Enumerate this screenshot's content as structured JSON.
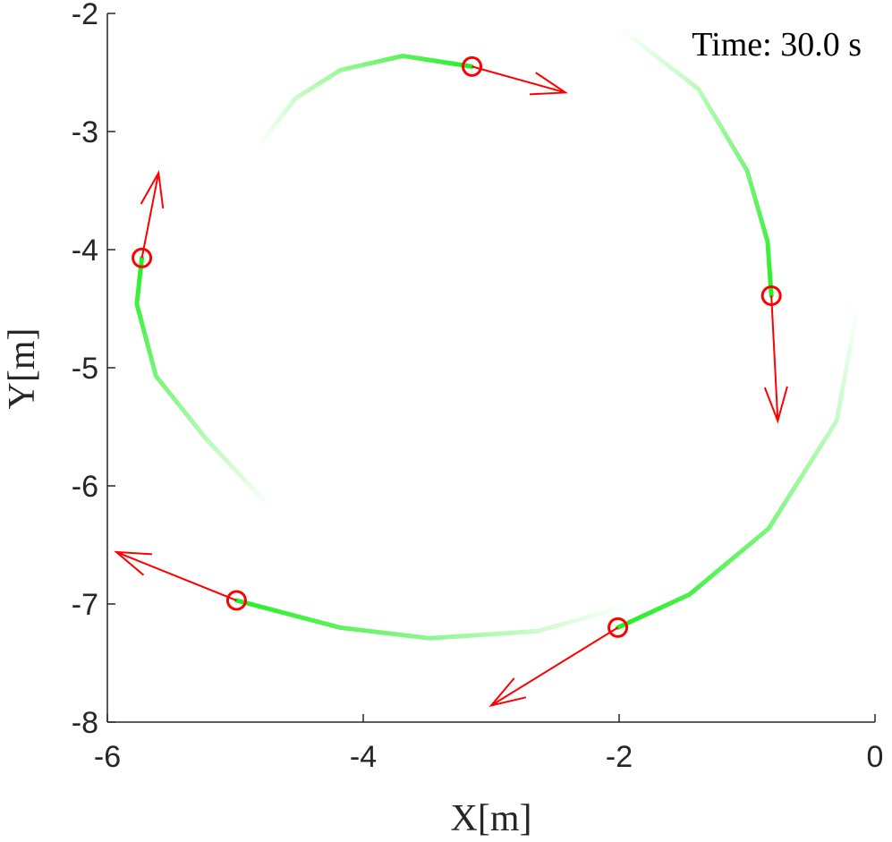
{
  "chart_data": {
    "type": "trajectory",
    "annotation": "Time: 30.0 s",
    "xlabel": "X[m]",
    "ylabel": "Y[m]",
    "xlim": [
      -6,
      0
    ],
    "ylim": [
      -8,
      -2
    ],
    "xticks": [
      -6,
      -4,
      -2,
      0
    ],
    "yticks": [
      -8,
      -7,
      -6,
      -5,
      -4,
      -3,
      -2
    ],
    "trail_color": "#22ee22",
    "marker_color": "#ff0000",
    "series": [
      {
        "x": [
          -4.83,
          -4.53,
          -4.18,
          -3.69,
          -3.15
        ],
        "values": [
          -3.14,
          -2.72,
          -2.48,
          -2.36,
          -2.45
        ],
        "arrow": {
          "x": -2.42,
          "y": -2.67
        }
      },
      {
        "x": [
          -4.71,
          -5.23,
          -5.62,
          -5.77,
          -5.73
        ],
        "values": [
          -6.2,
          -5.6,
          -5.07,
          -4.46,
          -4.07
        ],
        "arrow": {
          "x": -5.6,
          "y": -3.35
        }
      },
      {
        "x": [
          -2.01,
          -1.38,
          -1.0,
          -0.84,
          -0.81
        ],
        "values": [
          -2.11,
          -2.64,
          -3.33,
          -3.93,
          -4.39
        ],
        "arrow": {
          "x": -0.76,
          "y": -5.45
        }
      },
      {
        "x": [
          -1.94,
          -2.64,
          -3.48,
          -4.18,
          -4.99
        ],
        "values": [
          -7.02,
          -7.23,
          -7.29,
          -7.2,
          -6.97
        ],
        "arrow": {
          "x": -5.93,
          "y": -6.56
        }
      },
      {
        "x": [
          -0.13,
          -0.3,
          -0.83,
          -1.45,
          -2.01
        ],
        "values": [
          -4.46,
          -5.45,
          -6.36,
          -6.92,
          -7.2
        ],
        "arrow": {
          "x": -3.0,
          "y": -7.86
        }
      }
    ]
  }
}
